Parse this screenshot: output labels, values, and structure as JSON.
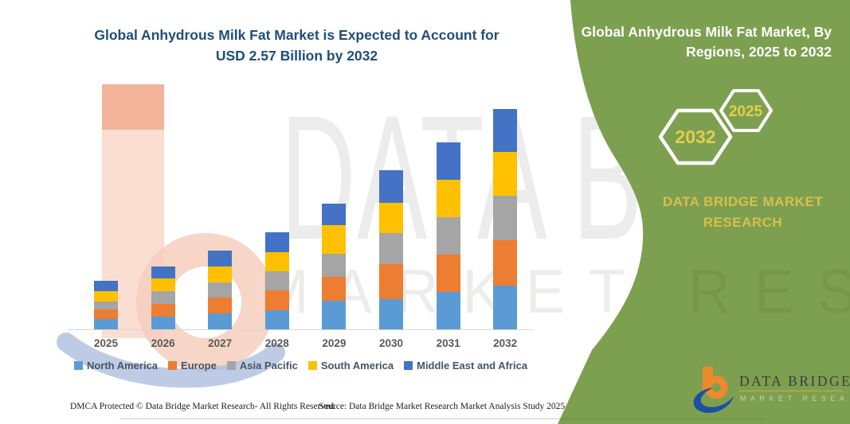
{
  "left_title": {
    "line1": "Global Anhydrous Milk Fat Market is Expected to Account for",
    "line2": "USD 2.57 Billion by 2032"
  },
  "right_panel": {
    "heading_line1": "Global Anhydrous Milk Fat Market, By",
    "heading_line2": "Regions, 2025 to 2032",
    "hexagons": [
      {
        "year": "2032"
      },
      {
        "year": "2025"
      }
    ],
    "brand_line1": "DATA BRIDGE MARKET",
    "brand_line2": "RESEARCH",
    "accent_green": "#7CA04F",
    "accent_gold": "#D9BE4B"
  },
  "watermark": {
    "line1": "DATA BRIDGE",
    "line2": "MARKET RESEARCH"
  },
  "logo": {
    "name": "DATA BRIDGE",
    "tagline": "MARKET RESEARCH"
  },
  "footer": {
    "dmca": "DMCA Protected © Data Bridge Market Research-  All Rights Reserved.",
    "source": "Source: Data Bridge Market Research  Market Analysis Study 2025"
  },
  "chart_data": {
    "type": "bar",
    "stacked": true,
    "title": "Global Anhydrous Milk Fat Market is Expected to Account for USD 2.57 Billion by 2032",
    "unit": "USD Billion",
    "categories": [
      "2025",
      "2026",
      "2027",
      "2028",
      "2029",
      "2030",
      "2031",
      "2032"
    ],
    "series": [
      {
        "name": "North America",
        "color": "#5B9BD5",
        "values": [
          0.12,
          0.15,
          0.19,
          0.22,
          0.33,
          0.35,
          0.44,
          0.51
        ]
      },
      {
        "name": "Europe",
        "color": "#ED7D31",
        "values": [
          0.11,
          0.15,
          0.19,
          0.23,
          0.28,
          0.41,
          0.44,
          0.53
        ]
      },
      {
        "name": "Asia Pacific",
        "color": "#A5A5A5",
        "values": [
          0.09,
          0.15,
          0.18,
          0.22,
          0.27,
          0.36,
          0.44,
          0.52
        ]
      },
      {
        "name": "South America",
        "color": "#FFC000",
        "values": [
          0.12,
          0.15,
          0.19,
          0.22,
          0.33,
          0.35,
          0.44,
          0.51
        ]
      },
      {
        "name": "Middle East and Africa",
        "color": "#4472C4",
        "values": [
          0.12,
          0.14,
          0.19,
          0.23,
          0.25,
          0.38,
          0.44,
          0.5
        ]
      }
    ],
    "totals": [
      0.56,
      0.74,
      0.94,
      1.12,
      1.46,
      1.85,
      2.2,
      2.57
    ],
    "xlabel": "",
    "ylabel": "",
    "ylim": [
      0,
      2.8
    ],
    "grid": false,
    "legend_position": "bottom"
  }
}
